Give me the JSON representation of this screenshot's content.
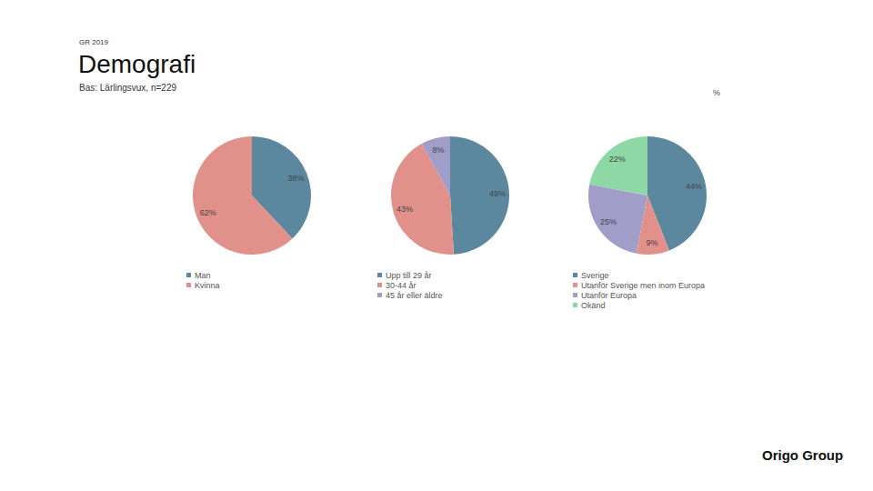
{
  "header": {
    "tag": "GR 2019",
    "title": "Demografi",
    "subtitle": "Bas: Lärlingsvux, n=229",
    "unit": "%"
  },
  "chart_data": [
    {
      "type": "pie",
      "categories": [
        "Man",
        "Kvinna"
      ],
      "values": [
        38,
        62
      ],
      "value_labels": [
        "38%",
        "62%"
      ],
      "colors": [
        "#5b879f",
        "#e2908a"
      ],
      "data_labels": true,
      "legend": "bottom"
    },
    {
      "type": "pie",
      "categories": [
        "Upp till 29 år",
        "30-44 år",
        "45 år eller äldre"
      ],
      "values": [
        49,
        43,
        8
      ],
      "value_labels": [
        "49%",
        "43%",
        "8%"
      ],
      "colors": [
        "#5b879f",
        "#e2908a",
        "#a19dc9"
      ],
      "data_labels": true,
      "legend": "bottom"
    },
    {
      "type": "pie",
      "categories": [
        "Sverige",
        "Utanför Sverige men inom Europa",
        "Utanför Europa",
        "Okänd"
      ],
      "values": [
        44,
        9,
        25,
        22
      ],
      "value_labels": [
        "44%",
        "9%",
        "25%",
        "22%"
      ],
      "colors": [
        "#5b879f",
        "#e2908a",
        "#a19dc9",
        "#8ed8a6"
      ],
      "data_labels": true,
      "legend": "bottom"
    }
  ],
  "logo": "Origo Group"
}
